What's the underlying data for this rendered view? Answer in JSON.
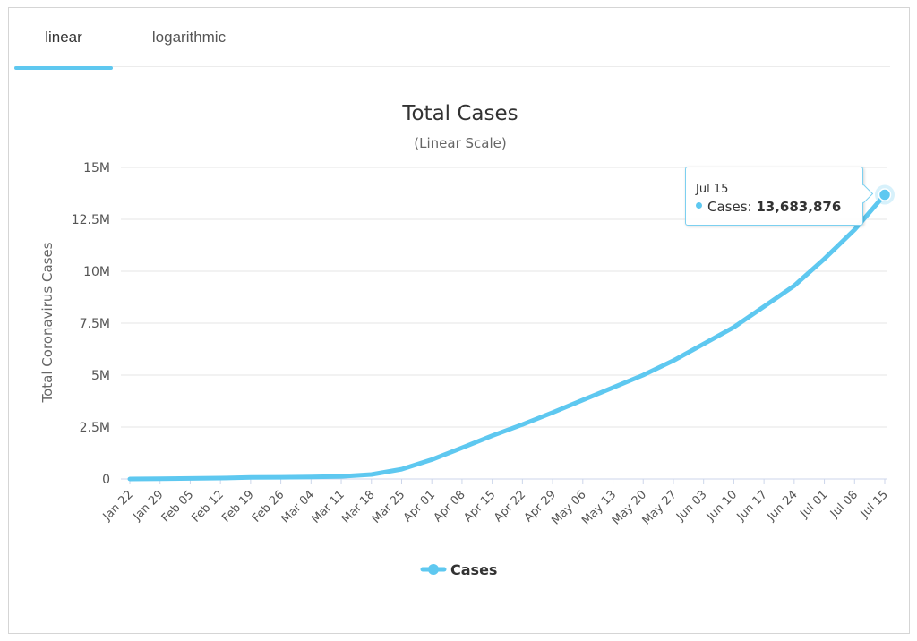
{
  "tabs": [
    {
      "label": "linear",
      "active": true
    },
    {
      "label": "logarithmic",
      "active": false
    }
  ],
  "colors": {
    "series": "#5ec8f0",
    "grid": "#e6e6e6",
    "text": "#333333",
    "axis_label": "#666666"
  },
  "tooltip": {
    "date": "Jul 15",
    "series_label": "Cases: ",
    "value": "13,683,876"
  },
  "chart_data": {
    "type": "line",
    "title": "Total Cases",
    "subtitle": "(Linear Scale)",
    "xlabel": "",
    "ylabel": "Total Coronavirus Cases",
    "ylim": [
      0,
      15000000
    ],
    "y_ticks": [
      0,
      2500000,
      5000000,
      7500000,
      10000000,
      12500000,
      15000000
    ],
    "y_tick_labels": [
      "0",
      "2.5M",
      "5M",
      "7.5M",
      "10M",
      "12.5M",
      "15M"
    ],
    "x_tick_labels": [
      "Jan 22",
      "Jan 29",
      "Feb 05",
      "Feb 12",
      "Feb 19",
      "Feb 26",
      "Mar 04",
      "Mar 11",
      "Mar 18",
      "Mar 25",
      "Apr 01",
      "Apr 08",
      "Apr 15",
      "Apr 22",
      "Apr 29",
      "May 06",
      "May 13",
      "May 20",
      "May 27",
      "Jun 03",
      "Jun 10",
      "Jun 17",
      "Jun 24",
      "Jul 01",
      "Jul 08",
      "Jul 15"
    ],
    "grid": true,
    "legend": {
      "position": "bottom-center",
      "entries": [
        "Cases"
      ]
    },
    "series": [
      {
        "name": "Cases",
        "x": [
          "Jan 22",
          "Jan 29",
          "Feb 05",
          "Feb 12",
          "Feb 19",
          "Feb 26",
          "Mar 04",
          "Mar 11",
          "Mar 18",
          "Mar 25",
          "Apr 01",
          "Apr 08",
          "Apr 15",
          "Apr 22",
          "Apr 29",
          "May 06",
          "May 13",
          "May 20",
          "May 27",
          "Jun 03",
          "Jun 10",
          "Jun 17",
          "Jun 24",
          "Jul 01",
          "Jul 08",
          "Jul 15"
        ],
        "values": [
          580,
          7800,
          28000,
          45000,
          75000,
          82000,
          95000,
          125000,
          215000,
          470000,
          930000,
          1500000,
          2080000,
          2620000,
          3200000,
          3800000,
          4400000,
          5000000,
          5700000,
          6500000,
          7300000,
          8300000,
          9300000,
          10600000,
          12000000,
          13683876
        ]
      }
    ]
  }
}
